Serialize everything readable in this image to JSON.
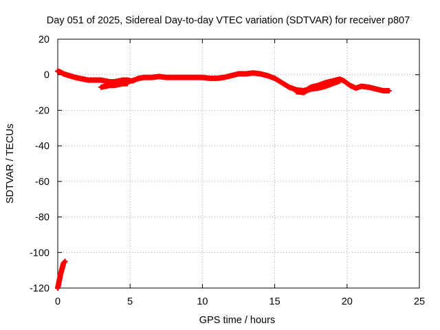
{
  "chart_data": {
    "type": "scatter",
    "title": "Day 051 of 2025, Sidereal Day-to-day VTEC variation (SDTVAR) for receiver p807",
    "xlabel": "GPS time / hours",
    "ylabel": "SDTVAR / TECUs",
    "xlim": [
      0,
      25
    ],
    "ylim": [
      -120,
      20
    ],
    "xticks": [
      0,
      5,
      10,
      15,
      20,
      25
    ],
    "yticks": [
      -120,
      -100,
      -80,
      -60,
      -40,
      -20,
      0,
      20
    ],
    "grid": true,
    "marker": "+",
    "series": [
      {
        "name": "SDTVAR",
        "color": "#ff0000",
        "segments": [
          [
            [
              0.0,
              -120
            ],
            [
              0.1,
              -116
            ],
            [
              0.2,
              -112
            ],
            [
              0.3,
              -109
            ],
            [
              0.4,
              -106
            ],
            [
              0.5,
              -105
            ]
          ],
          [
            [
              0.0,
              2.0
            ],
            [
              0.2,
              1.5
            ],
            [
              0.4,
              0.5
            ],
            [
              0.6,
              0.0
            ],
            [
              0.8,
              -0.5
            ],
            [
              1.0,
              -1.0
            ],
            [
              1.2,
              -1.5
            ],
            [
              1.5,
              -2.0
            ],
            [
              1.8,
              -2.5
            ],
            [
              2.1,
              -3.0
            ],
            [
              2.4,
              -3.0
            ],
            [
              2.7,
              -3.0
            ],
            [
              3.0,
              -3.0
            ],
            [
              3.3,
              -3.5
            ],
            [
              3.6,
              -4.0
            ],
            [
              3.9,
              -4.0
            ],
            [
              4.2,
              -3.5
            ],
            [
              4.5,
              -3.0
            ],
            [
              4.8,
              -3.0
            ],
            [
              5.1,
              -3.5
            ],
            [
              5.3,
              -3.0
            ],
            [
              5.6,
              -2.0
            ],
            [
              6.0,
              -1.5
            ],
            [
              6.5,
              -1.5
            ],
            [
              7.0,
              -1.0
            ],
            [
              7.5,
              -1.5
            ],
            [
              8.0,
              -1.5
            ],
            [
              8.5,
              -1.5
            ],
            [
              9.0,
              -1.5
            ],
            [
              9.5,
              -1.5
            ],
            [
              10.0,
              -1.5
            ],
            [
              10.5,
              -2.0
            ],
            [
              11.0,
              -2.0
            ],
            [
              11.5,
              -1.5
            ],
            [
              12.0,
              -0.5
            ],
            [
              12.5,
              0.5
            ],
            [
              13.0,
              0.5
            ],
            [
              13.5,
              1.0
            ],
            [
              14.0,
              0.5
            ],
            [
              14.5,
              -0.5
            ],
            [
              15.0,
              -2.0
            ],
            [
              15.5,
              -4.5
            ],
            [
              16.0,
              -7.0
            ],
            [
              16.5,
              -8.5
            ],
            [
              17.0,
              -9.0
            ],
            [
              17.2,
              -8.5
            ],
            [
              17.5,
              -7.0
            ],
            [
              18.0,
              -6.0
            ],
            [
              18.5,
              -4.5
            ],
            [
              19.0,
              -3.5
            ],
            [
              19.5,
              -2.5
            ],
            [
              19.8,
              -3.5
            ],
            [
              20.2,
              -6.0
            ],
            [
              20.6,
              -7.5
            ],
            [
              21.0,
              -6.5
            ],
            [
              21.5,
              -7.0
            ],
            [
              22.0,
              -8.0
            ],
            [
              22.5,
              -9.0
            ],
            [
              22.9,
              -9.0
            ]
          ],
          [
            [
              3.0,
              -7.0
            ],
            [
              3.3,
              -6.5
            ],
            [
              3.6,
              -6.0
            ],
            [
              3.9,
              -6.0
            ],
            [
              4.2,
              -5.5
            ],
            [
              4.5,
              -5.0
            ],
            [
              4.8,
              -5.0
            ]
          ],
          [
            [
              16.5,
              -9.5
            ],
            [
              17.0,
              -10.0
            ],
            [
              17.2,
              -9.0
            ],
            [
              17.5,
              -8.0
            ],
            [
              18.0,
              -7.5
            ],
            [
              18.5,
              -6.5
            ],
            [
              19.0,
              -5.0
            ],
            [
              19.5,
              -3.5
            ]
          ]
        ]
      }
    ]
  }
}
